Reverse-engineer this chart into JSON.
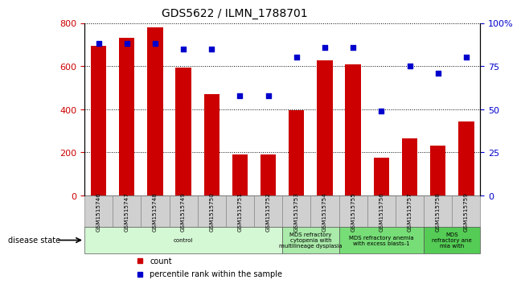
{
  "title": "GDS5622 / ILMN_1788701",
  "samples": [
    "GSM1515746",
    "GSM1515747",
    "GSM1515748",
    "GSM1515749",
    "GSM1515750",
    "GSM1515751",
    "GSM1515752",
    "GSM1515753",
    "GSM1515754",
    "GSM1515755",
    "GSM1515756",
    "GSM1515757",
    "GSM1515758",
    "GSM1515759"
  ],
  "counts": [
    695,
    730,
    780,
    595,
    470,
    190,
    190,
    395,
    625,
    610,
    175,
    265,
    230,
    345
  ],
  "percentile_ranks": [
    88,
    88,
    88,
    85,
    85,
    58,
    58,
    80,
    86,
    86,
    49,
    75,
    71,
    80
  ],
  "ylim_left": [
    0,
    800
  ],
  "ylim_right": [
    0,
    100
  ],
  "yticks_left": [
    0,
    200,
    400,
    600,
    800
  ],
  "yticks_right": [
    0,
    25,
    50,
    75,
    100
  ],
  "bar_color": "#cc0000",
  "dot_color": "#0000cc",
  "grid_color": "#000000",
  "disease_groups": [
    {
      "label": "control",
      "start": 0,
      "end": 7,
      "color": "#d4f7d4"
    },
    {
      "label": "MDS refractory\ncytopenia with\nmultilineage dysplasia",
      "start": 7,
      "end": 9,
      "color": "#aaeaaa"
    },
    {
      "label": "MDS refractory anemia\nwith excess blasts-1",
      "start": 9,
      "end": 12,
      "color": "#77dd77"
    },
    {
      "label": "MDS\nrefractory ane\nmia with",
      "start": 12,
      "end": 14,
      "color": "#55cc55"
    }
  ],
  "xlabel_disease": "disease state",
  "legend_count": "count",
  "legend_percentile": "percentile rank within the sample",
  "tick_bg_color": "#d0d0d0",
  "left_yaxis_color": "#cc0000",
  "right_yaxis_color": "#0000cc",
  "bg_color": "#ffffff"
}
